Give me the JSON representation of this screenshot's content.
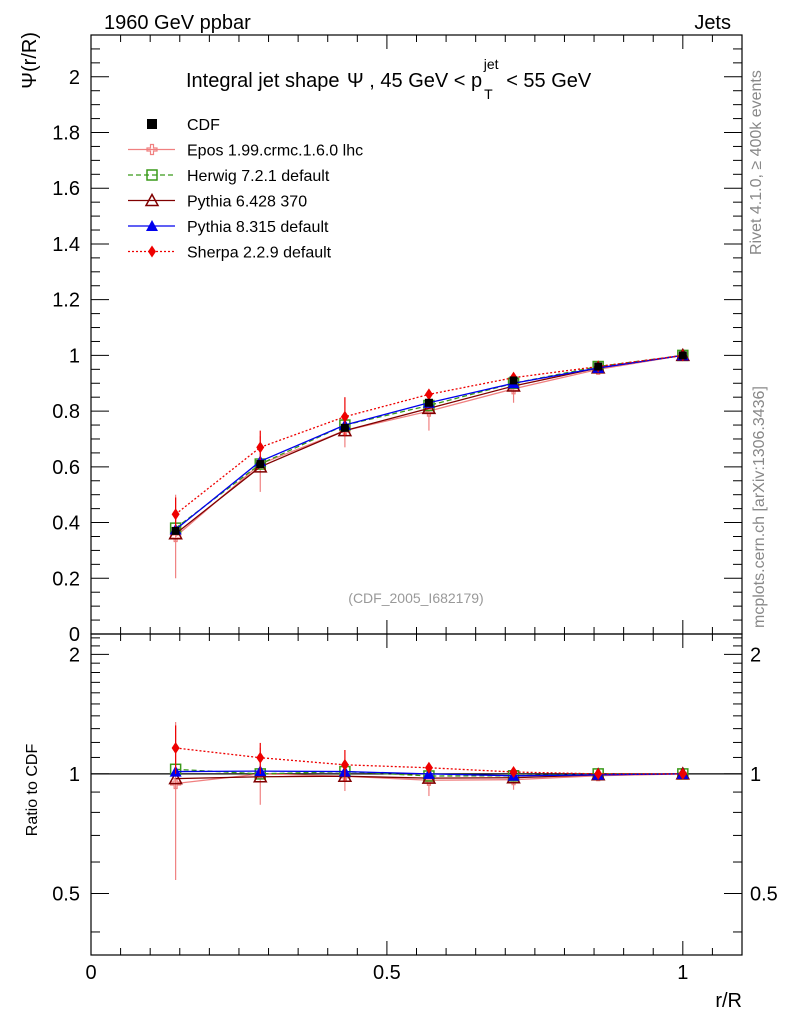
{
  "header": {
    "left": "1960 GeV ppbar",
    "right": "Jets"
  },
  "side_labels": {
    "rivet": "Rivet 4.1.0, ≥ 400k events",
    "mcplots": "mcplots.cern.ch [arXiv:1306.3436]"
  },
  "chart_data": {
    "type": "line",
    "title": {
      "prefix": "Integral jet shape",
      "psi": "Ψ",
      "mid": ", 45 GeV < p",
      "sup": "jet",
      "sub": "T",
      "suffix": " < 55 GeV"
    },
    "analysis_id": "(CDF_2005_I682179)",
    "ylabel": "Ψ(r/R)",
    "ratio_ylabel": "Ratio to CDF",
    "xlabel": "r/R",
    "xlim": [
      0,
      1.1
    ],
    "ylim": [
      0,
      2.15
    ],
    "ratio_ylim": [
      0.35,
      2.25
    ],
    "x_ticks": [
      {
        "v": 0,
        "label": "0"
      },
      {
        "v": 0.5,
        "label": "0.5"
      },
      {
        "v": 1,
        "label": "1"
      }
    ],
    "y_ticks": [
      {
        "v": 0,
        "label": "0"
      },
      {
        "v": 0.2,
        "label": "0.2"
      },
      {
        "v": 0.4,
        "label": "0.4"
      },
      {
        "v": 0.6,
        "label": "0.6"
      },
      {
        "v": 0.8,
        "label": "0.8"
      },
      {
        "v": 1,
        "label": "1"
      },
      {
        "v": 1.2,
        "label": "1.2"
      },
      {
        "v": 1.4,
        "label": "1.4"
      },
      {
        "v": 1.6,
        "label": "1.6"
      },
      {
        "v": 1.8,
        "label": "1.8"
      },
      {
        "v": 2,
        "label": "2"
      }
    ],
    "ratio_ticks": [
      {
        "v": 0.5,
        "label": "0.5"
      },
      {
        "v": 1,
        "label": "1"
      },
      {
        "v": 2,
        "label": "2"
      }
    ],
    "x": [
      0.143,
      0.286,
      0.429,
      0.571,
      0.714,
      0.857,
      1.0
    ],
    "data": {
      "name": "CDF",
      "values": [
        0.37,
        0.61,
        0.74,
        0.83,
        0.91,
        0.96,
        1.0
      ],
      "errors": [
        0.01,
        0.01,
        0.01,
        0.01,
        0.01,
        0.005,
        0.0
      ]
    },
    "series": [
      {
        "name": "Epos 1.99.crmc.1.6.0 lhc",
        "color": "#f08080",
        "dash": "",
        "marker": "cross-open",
        "values": [
          0.35,
          0.61,
          0.73,
          0.8,
          0.88,
          0.95,
          1.0
        ],
        "errors": [
          0.15,
          0.1,
          0.06,
          0.07,
          0.05,
          0.015,
          0.0
        ]
      },
      {
        "name": "Herwig 7.2.1 default",
        "color": "#3a9a1a",
        "dash": "5,3",
        "marker": "square-open",
        "values": [
          0.38,
          0.61,
          0.75,
          0.82,
          0.9,
          0.96,
          1.0
        ],
        "errors": [
          0,
          0,
          0,
          0,
          0,
          0,
          0
        ]
      },
      {
        "name": "Pythia 6.428 370",
        "color": "#800000",
        "dash": "",
        "marker": "triangle-open",
        "values": [
          0.36,
          0.6,
          0.73,
          0.81,
          0.89,
          0.955,
          1.0
        ],
        "errors": [
          0,
          0,
          0,
          0,
          0,
          0,
          0
        ]
      },
      {
        "name": "Pythia 8.315 default",
        "color": "#0000ee",
        "dash": "",
        "marker": "triangle-filled",
        "values": [
          0.375,
          0.62,
          0.75,
          0.83,
          0.9,
          0.955,
          1.0
        ],
        "errors": [
          0,
          0,
          0,
          0,
          0,
          0,
          0
        ]
      },
      {
        "name": "Sherpa 2.2.9 default",
        "color": "#ee0000",
        "dash": "2,2",
        "marker": "diamond-filled",
        "values": [
          0.43,
          0.67,
          0.78,
          0.86,
          0.92,
          0.96,
          1.0
        ],
        "errors": [
          0.06,
          0.06,
          0.07,
          0.01,
          0.01,
          0.005,
          0.0
        ]
      }
    ]
  }
}
